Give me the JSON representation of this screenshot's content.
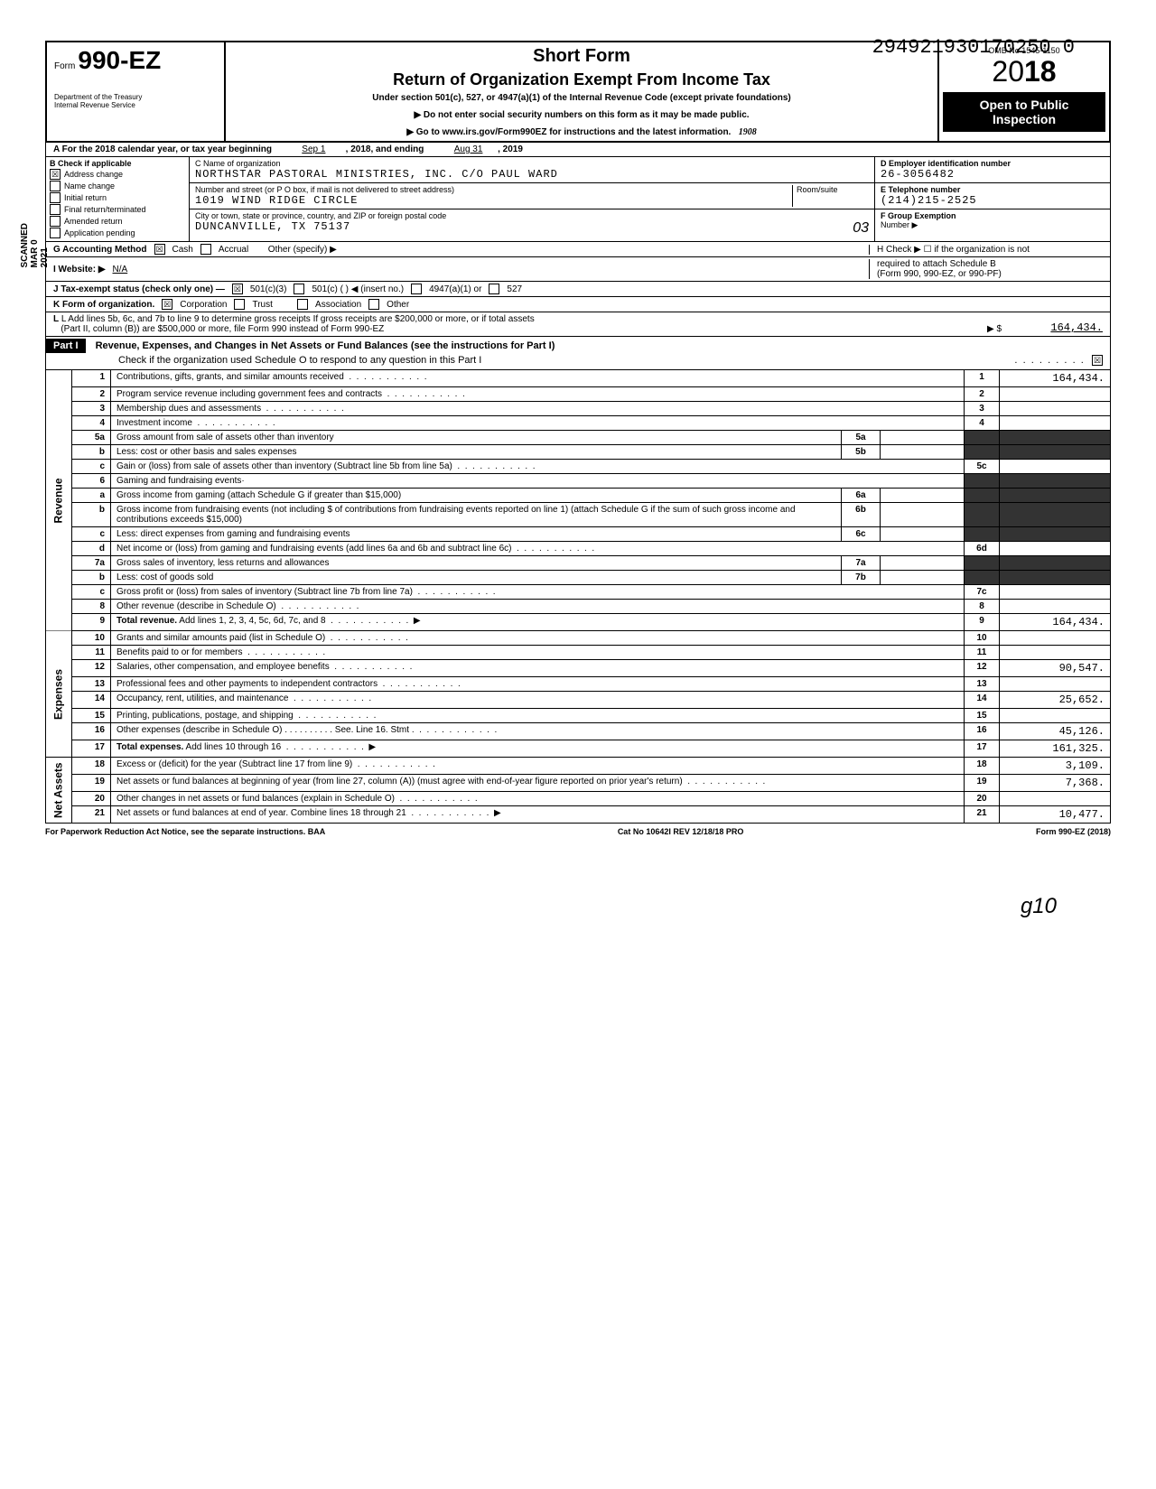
{
  "top_stamp": "294921930170250 0",
  "omb_small": "OMB No 1545-1150",
  "form": {
    "prefix": "Form",
    "number": "990-EZ",
    "short_form": "Short Form",
    "title": "Return of Organization Exempt From Income Tax",
    "under_section": "Under section 501(c), 527, or 4947(a)(1) of the Internal Revenue Code (except private foundations)",
    "ssn_note": "▶ Do not enter social security numbers on this form as it may be made public.",
    "irs_link": "▶ Go to www.irs.gov/Form990EZ for instructions and the latest information.",
    "dept": "Department of the Treasury",
    "irs": "Internal Revenue Service",
    "year": "2018",
    "open_public_1": "Open to Public",
    "open_public_2": "Inspection",
    "handwritten": "1908"
  },
  "side_annotations": "SCANNED MAR 0 2021",
  "line_a": {
    "label": "A For the 2018 calendar year, or tax year beginning",
    "begin": "Sep 1",
    "mid": ", 2018, and ending",
    "end_month": "Aug 31",
    "end_year": ", 2019"
  },
  "section_b": {
    "header": "B Check if applicable",
    "items": [
      {
        "label": "Address change",
        "checked": true
      },
      {
        "label": "Name change",
        "checked": false
      },
      {
        "label": "Initial return",
        "checked": false
      },
      {
        "label": "Final return/terminated",
        "checked": false
      },
      {
        "label": "Amended return",
        "checked": false
      },
      {
        "label": "Application pending",
        "checked": false
      }
    ]
  },
  "section_c": {
    "name_label": "C Name of organization",
    "name": "NORTHSTAR PASTORAL MINISTRIES, INC. C/O PAUL WARD",
    "addr_label": "Number and street (or P O  box, if mail is not delivered to street address)",
    "addr": "1019 WIND RIDGE CIRCLE",
    "room_label": "Room/suite",
    "city_label": "City or town, state or province, country, and ZIP or foreign postal code",
    "city": "DUNCANVILLE, TX 75137",
    "handwritten": "03"
  },
  "section_d": {
    "label": "D Employer identification number",
    "value": "26-3056482"
  },
  "section_e": {
    "label": "E Telephone number",
    "value": "(214)215-2525"
  },
  "section_f": {
    "label": "F Group Exemption",
    "label2": "Number ▶"
  },
  "section_g": {
    "label": "G Accounting Method",
    "cash": "Cash",
    "accrual": "Accrual",
    "other": "Other (specify) ▶",
    "cash_checked": true
  },
  "section_h": {
    "label": "H Check ▶ ☐ if the organization is not",
    "label2": "required to attach Schedule B",
    "label3": "(Form 990, 990-EZ, or 990-PF)"
  },
  "section_i": {
    "label": "I  Website: ▶",
    "value": "N/A"
  },
  "section_j": {
    "label": "J Tax-exempt status (check only one) —",
    "opt1": "501(c)(3)",
    "opt2": "501(c) (        ) ◀ (insert no.)",
    "opt3": "4947(a)(1) or",
    "opt4": "527",
    "opt1_checked": true
  },
  "section_k": {
    "label": "K Form of organization.",
    "corp": "Corporation",
    "trust": "Trust",
    "assoc": "Association",
    "other": "Other",
    "corp_checked": true
  },
  "section_l": {
    "label": "L Add lines 5b, 6c, and 7b to line 9 to determine gross receipts  If gross receipts are $200,000 or more, or if total assets",
    "label2": "(Part II, column (B)) are $500,000 or more, file Form 990 instead of Form 990-EZ",
    "arrow": "▶  $",
    "value": "164,434."
  },
  "part1": {
    "header": "Part I",
    "title": "Revenue, Expenses, and Changes in Net Assets or Fund Balances (see the instructions for Part I)",
    "check_text": "Check if the organization used Schedule O to respond to any question in this Part I",
    "checked": true
  },
  "sections": {
    "revenue": "Revenue",
    "expenses": "Expenses",
    "netassets": "Net Assets"
  },
  "lines": [
    {
      "n": "1",
      "d": "Contributions, gifts, grants, and similar amounts received",
      "ln": "1",
      "amt": "164,434."
    },
    {
      "n": "2",
      "d": "Program service revenue including government fees and contracts",
      "ln": "2",
      "amt": ""
    },
    {
      "n": "3",
      "d": "Membership dues and assessments",
      "ln": "3",
      "amt": ""
    },
    {
      "n": "4",
      "d": "Investment income",
      "ln": "4",
      "amt": ""
    },
    {
      "n": "5a",
      "d": "Gross amount from sale of assets other than inventory",
      "box": "5a",
      "boxval": ""
    },
    {
      "n": "b",
      "d": "Less: cost or other basis and sales expenses",
      "box": "5b",
      "boxval": ""
    },
    {
      "n": "c",
      "d": "Gain or (loss) from sale of assets other than inventory (Subtract line 5b from line 5a)",
      "ln": "5c",
      "amt": ""
    },
    {
      "n": "6",
      "d": "Gaming and fundraising events·"
    },
    {
      "n": "a",
      "d": "Gross income from gaming (attach Schedule G if greater than $15,000)",
      "box": "6a",
      "boxval": ""
    },
    {
      "n": "b",
      "d": "Gross income from fundraising events (not including  $                    of contributions from fundraising events reported on line 1) (attach Schedule G if the sum of such gross income and contributions exceeds $15,000)",
      "box": "6b",
      "boxval": ""
    },
    {
      "n": "c",
      "d": "Less: direct expenses from gaming and fundraising events",
      "box": "6c",
      "boxval": ""
    },
    {
      "n": "d",
      "d": "Net income or (loss) from gaming and fundraising events (add lines 6a and 6b and subtract line 6c)",
      "ln": "6d",
      "amt": ""
    },
    {
      "n": "7a",
      "d": "Gross sales of inventory, less returns and allowances",
      "box": "7a",
      "boxval": ""
    },
    {
      "n": "b",
      "d": "Less: cost of goods sold",
      "box": "7b",
      "boxval": ""
    },
    {
      "n": "c",
      "d": "Gross profit or (loss) from sales of inventory (Subtract line 7b from line 7a)",
      "ln": "7c",
      "amt": ""
    },
    {
      "n": "8",
      "d": "Other revenue (describe in Schedule O)",
      "ln": "8",
      "amt": ""
    },
    {
      "n": "9",
      "d": "Total revenue. Add lines 1, 2, 3, 4, 5c, 6d, 7c, and 8",
      "ln": "9",
      "amt": "164,434.",
      "bold": true,
      "arrow": true
    },
    {
      "n": "10",
      "d": "Grants and similar amounts paid (list in Schedule O)",
      "ln": "10",
      "amt": ""
    },
    {
      "n": "11",
      "d": "Benefits paid to or for members",
      "ln": "11",
      "amt": ""
    },
    {
      "n": "12",
      "d": "Salaries, other compensation, and employee benefits",
      "ln": "12",
      "amt": "90,547."
    },
    {
      "n": "13",
      "d": "Professional fees and other payments to independent contractors",
      "ln": "13",
      "amt": ""
    },
    {
      "n": "14",
      "d": "Occupancy, rent, utilities, and maintenance",
      "ln": "14",
      "amt": "25,652."
    },
    {
      "n": "15",
      "d": "Printing, publications, postage, and shipping",
      "ln": "15",
      "amt": ""
    },
    {
      "n": "16",
      "d": "Other expenses (describe in Schedule O) . . . . . . . . . . See. Line 16. Stmt .",
      "ln": "16",
      "amt": "45,126."
    },
    {
      "n": "17",
      "d": "Total expenses. Add lines 10 through 16",
      "ln": "17",
      "amt": "161,325.",
      "bold": true,
      "arrow": true
    },
    {
      "n": "18",
      "d": "Excess or (deficit) for the year (Subtract line 17 from line 9)",
      "ln": "18",
      "amt": "3,109."
    },
    {
      "n": "19",
      "d": "Net assets or fund balances at beginning of year (from line 27, column (A)) (must agree with end-of-year figure reported on prior year's return)",
      "ln": "19",
      "amt": "7,368."
    },
    {
      "n": "20",
      "d": "Other changes in net assets or fund balances (explain in Schedule O)",
      "ln": "20",
      "amt": ""
    },
    {
      "n": "21",
      "d": "Net assets or fund balances at end of year. Combine lines 18 through 21",
      "ln": "21",
      "amt": "10,477.",
      "arrow": true
    }
  ],
  "footer": {
    "left": "For Paperwork Reduction Act Notice, see the separate instructions. BAA",
    "mid": "Cat  No  10642I   REV 12/18/18 PRO",
    "right": "Form 990-EZ  (2018)"
  },
  "bottom_sig": "g10",
  "colors": {
    "black": "#000000",
    "white": "#ffffff",
    "shade": "#333333"
  }
}
